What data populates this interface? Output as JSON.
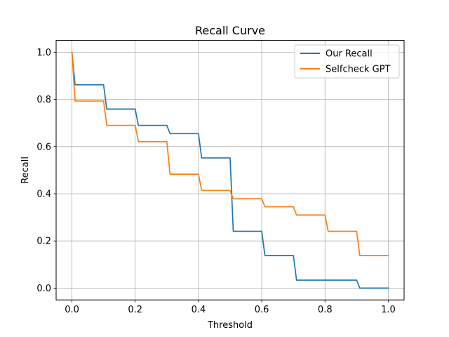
{
  "chart_data": {
    "type": "line",
    "title": "Recall Curve",
    "xlabel": "Threshold",
    "ylabel": "Recall",
    "xlim": [
      -0.05,
      1.05
    ],
    "ylim": [
      -0.05,
      1.05
    ],
    "xticks": [
      0.0,
      0.2,
      0.4,
      0.6,
      0.8,
      1.0
    ],
    "xtick_labels": [
      "0.0",
      "0.2",
      "0.4",
      "0.6",
      "0.8",
      "1.0"
    ],
    "yticks": [
      0.0,
      0.2,
      0.4,
      0.6,
      0.8,
      1.0
    ],
    "ytick_labels": [
      "0.0",
      "0.2",
      "0.4",
      "0.6",
      "0.8",
      "1.0"
    ],
    "grid": true,
    "legend_position": "top-right",
    "series": [
      {
        "name": "Our Recall",
        "color": "#1f77b4",
        "x": [
          0.0,
          0.01,
          0.02,
          0.03,
          0.04,
          0.05,
          0.06,
          0.07,
          0.08,
          0.09,
          0.1,
          0.11,
          0.12,
          0.13,
          0.14,
          0.15,
          0.16,
          0.17,
          0.18,
          0.19,
          0.2,
          0.21,
          0.22,
          0.23,
          0.24,
          0.25,
          0.26,
          0.27,
          0.28,
          0.29,
          0.3,
          0.31,
          0.32,
          0.33,
          0.34,
          0.35,
          0.36,
          0.37,
          0.38,
          0.39,
          0.4,
          0.41,
          0.42,
          0.43,
          0.44,
          0.45,
          0.46,
          0.47,
          0.48,
          0.49,
          0.5,
          0.51,
          0.52,
          0.53,
          0.54,
          0.55,
          0.56,
          0.57,
          0.58,
          0.59,
          0.6,
          0.61,
          0.62,
          0.63,
          0.64,
          0.65,
          0.66,
          0.67,
          0.68,
          0.69,
          0.7,
          0.71,
          0.72,
          0.73,
          0.74,
          0.75,
          0.76,
          0.77,
          0.78,
          0.79,
          0.8,
          0.81,
          0.82,
          0.83,
          0.84,
          0.85,
          0.86,
          0.87,
          0.88,
          0.89,
          0.9,
          0.91,
          0.92,
          0.93,
          0.94,
          0.95,
          0.96,
          0.97,
          0.98,
          0.99,
          1.0
        ],
        "y": [
          1.0,
          0.862,
          0.862,
          0.862,
          0.862,
          0.862,
          0.862,
          0.862,
          0.862,
          0.862,
          0.862,
          0.759,
          0.759,
          0.759,
          0.759,
          0.759,
          0.759,
          0.759,
          0.759,
          0.759,
          0.759,
          0.69,
          0.69,
          0.69,
          0.69,
          0.69,
          0.69,
          0.69,
          0.69,
          0.69,
          0.69,
          0.655,
          0.655,
          0.655,
          0.655,
          0.655,
          0.655,
          0.655,
          0.655,
          0.655,
          0.655,
          0.552,
          0.552,
          0.552,
          0.552,
          0.552,
          0.552,
          0.552,
          0.552,
          0.552,
          0.552,
          0.241,
          0.241,
          0.241,
          0.241,
          0.241,
          0.241,
          0.241,
          0.241,
          0.241,
          0.241,
          0.138,
          0.138,
          0.138,
          0.138,
          0.138,
          0.138,
          0.138,
          0.138,
          0.138,
          0.138,
          0.034,
          0.034,
          0.034,
          0.034,
          0.034,
          0.034,
          0.034,
          0.034,
          0.034,
          0.034,
          0.034,
          0.034,
          0.034,
          0.034,
          0.034,
          0.034,
          0.034,
          0.034,
          0.034,
          0.034,
          0.0,
          0.0,
          0.0,
          0.0,
          0.0,
          0.0,
          0.0,
          0.0,
          0.0,
          0.0
        ]
      },
      {
        "name": "Selfcheck GPT",
        "color": "#ff7f0e",
        "x": [
          0.0,
          0.01,
          0.02,
          0.03,
          0.04,
          0.05,
          0.06,
          0.07,
          0.08,
          0.09,
          0.1,
          0.11,
          0.12,
          0.13,
          0.14,
          0.15,
          0.16,
          0.17,
          0.18,
          0.19,
          0.2,
          0.21,
          0.22,
          0.23,
          0.24,
          0.25,
          0.26,
          0.27,
          0.28,
          0.29,
          0.3,
          0.31,
          0.32,
          0.33,
          0.34,
          0.35,
          0.36,
          0.37,
          0.38,
          0.39,
          0.4,
          0.41,
          0.42,
          0.43,
          0.44,
          0.45,
          0.46,
          0.47,
          0.48,
          0.49,
          0.5,
          0.51,
          0.52,
          0.53,
          0.54,
          0.55,
          0.56,
          0.57,
          0.58,
          0.59,
          0.6,
          0.61,
          0.62,
          0.63,
          0.64,
          0.65,
          0.66,
          0.67,
          0.68,
          0.69,
          0.7,
          0.71,
          0.72,
          0.73,
          0.74,
          0.75,
          0.76,
          0.77,
          0.78,
          0.79,
          0.8,
          0.81,
          0.82,
          0.83,
          0.84,
          0.85,
          0.86,
          0.87,
          0.88,
          0.89,
          0.9,
          0.91,
          0.92,
          0.93,
          0.94,
          0.95,
          0.96,
          0.97,
          0.98,
          0.99,
          1.0
        ],
        "y": [
          1.0,
          0.793,
          0.793,
          0.793,
          0.793,
          0.793,
          0.793,
          0.793,
          0.793,
          0.793,
          0.793,
          0.69,
          0.69,
          0.69,
          0.69,
          0.69,
          0.69,
          0.69,
          0.69,
          0.69,
          0.69,
          0.621,
          0.621,
          0.621,
          0.621,
          0.621,
          0.621,
          0.621,
          0.621,
          0.621,
          0.621,
          0.483,
          0.483,
          0.483,
          0.483,
          0.483,
          0.483,
          0.483,
          0.483,
          0.483,
          0.483,
          0.414,
          0.414,
          0.414,
          0.414,
          0.414,
          0.414,
          0.414,
          0.414,
          0.414,
          0.414,
          0.379,
          0.379,
          0.379,
          0.379,
          0.379,
          0.379,
          0.379,
          0.379,
          0.379,
          0.379,
          0.345,
          0.345,
          0.345,
          0.345,
          0.345,
          0.345,
          0.345,
          0.345,
          0.345,
          0.345,
          0.31,
          0.31,
          0.31,
          0.31,
          0.31,
          0.31,
          0.31,
          0.31,
          0.31,
          0.31,
          0.241,
          0.241,
          0.241,
          0.241,
          0.241,
          0.241,
          0.241,
          0.241,
          0.241,
          0.241,
          0.138,
          0.138,
          0.138,
          0.138,
          0.138,
          0.138,
          0.138,
          0.138,
          0.138,
          0.138
        ]
      }
    ]
  }
}
